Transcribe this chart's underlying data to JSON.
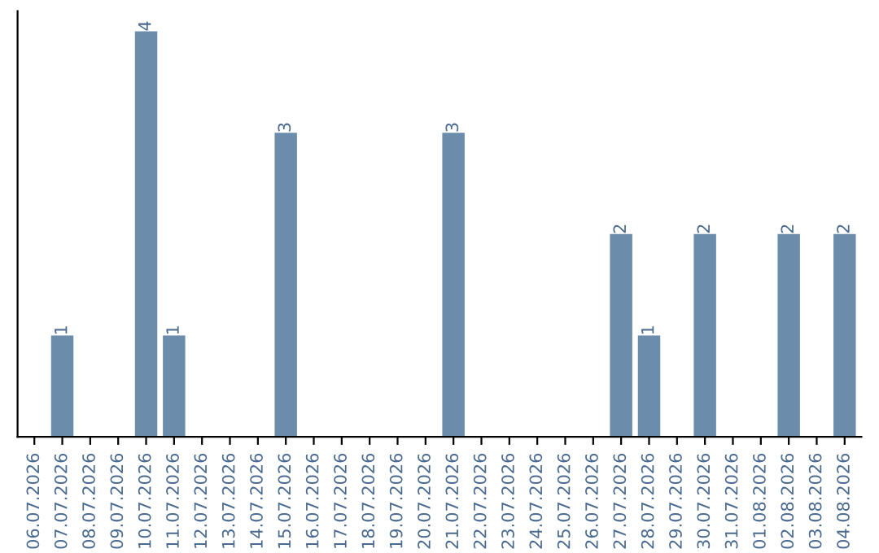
{
  "chart_data": {
    "type": "bar",
    "categories": [
      "06.07.2026",
      "07.07.2026",
      "08.07.2026",
      "09.07.2026",
      "10.07.2026",
      "11.07.2026",
      "12.07.2026",
      "13.07.2026",
      "14.07.2026",
      "15.07.2026",
      "16.07.2026",
      "17.07.2026",
      "18.07.2026",
      "19.07.2026",
      "20.07.2026",
      "21.07.2026",
      "22.07.2026",
      "23.07.2026",
      "24.07.2026",
      "25.07.2026",
      "26.07.2026",
      "27.07.2026",
      "28.07.2026",
      "29.07.2026",
      "30.07.2026",
      "31.07.2026",
      "01.08.2026",
      "02.08.2026",
      "03.08.2026",
      "04.08.2026"
    ],
    "values": [
      0,
      1,
      0,
      0,
      4,
      1,
      0,
      0,
      0,
      3,
      0,
      0,
      0,
      0,
      0,
      3,
      0,
      0,
      0,
      0,
      0,
      2,
      1,
      0,
      2,
      0,
      0,
      2,
      0,
      2
    ],
    "value_labels": [
      null,
      "1",
      null,
      null,
      "4",
      "1",
      null,
      null,
      null,
      "3",
      null,
      null,
      null,
      null,
      null,
      "3",
      null,
      null,
      null,
      null,
      null,
      "2",
      "1",
      null,
      "2",
      null,
      null,
      "2",
      null,
      "2"
    ],
    "color": "#6b8cab",
    "ylim": [
      0,
      4.2
    ],
    "tick_labels": "x",
    "grid": false,
    "legend": false
  }
}
